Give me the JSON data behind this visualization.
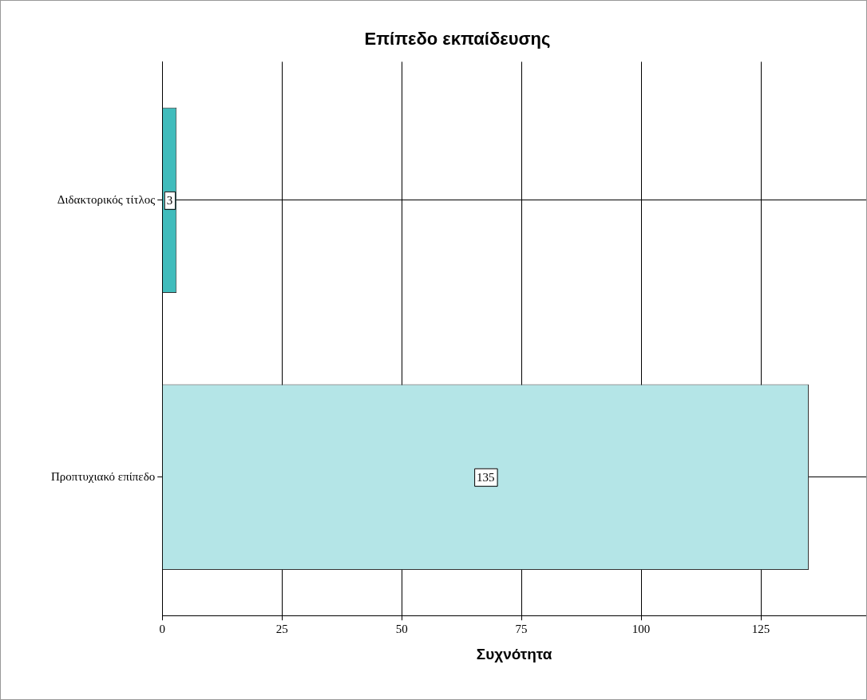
{
  "chart_data": {
    "type": "bar",
    "orientation": "horizontal",
    "title": "Επίπεδο εκπαίδευσης",
    "xlabel": "Συχνότητα",
    "categories": [
      "Διδακτορικός τίτλος",
      "Προπτυχιακό επίπεδο"
    ],
    "values": [
      3,
      135
    ],
    "colors": [
      "#40bcbc",
      "#b4e5e7"
    ],
    "xlim": [
      0,
      147
    ],
    "xticks": [
      0,
      25,
      50,
      75,
      100,
      125
    ],
    "grid": true,
    "legend": false,
    "data_labels": true
  }
}
